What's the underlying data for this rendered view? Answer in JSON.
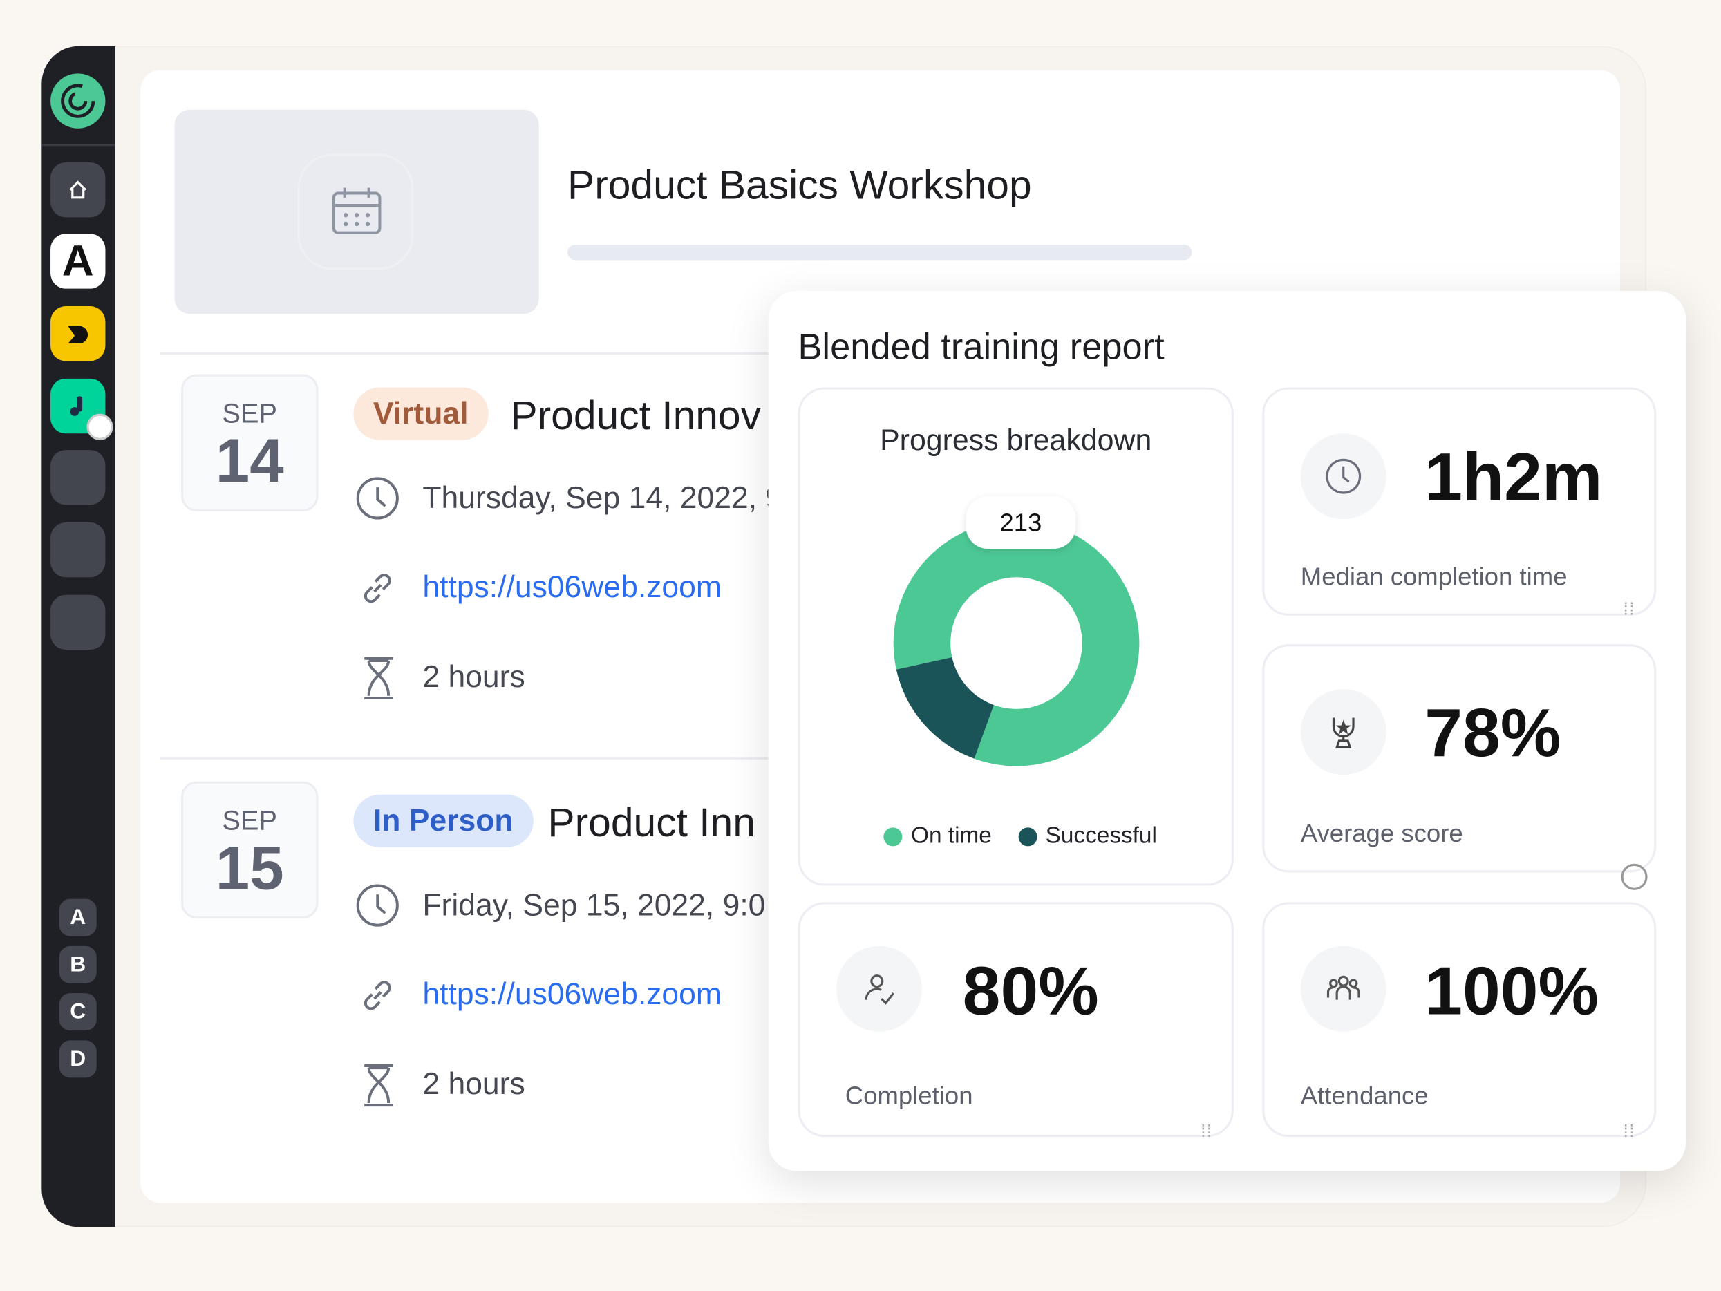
{
  "sidebar": {
    "letters": [
      "A",
      "B",
      "C",
      "D"
    ],
    "apps": [
      "A"
    ]
  },
  "workshop": {
    "title": "Product Basics Workshop",
    "progress": 0
  },
  "events": [
    {
      "month": "SEP",
      "day": "14",
      "type": "Virtual",
      "title": "Product Innov",
      "date": "Thursday, Sep 14, 2022, 9",
      "link": "https://us06web.zoom",
      "duration": "2 hours"
    },
    {
      "month": "SEP",
      "day": "15",
      "type": "In Person",
      "title": "Product Inn",
      "date": "Friday, Sep 15, 2022, 9:0",
      "link": "https://us06web.zoom",
      "duration": "2 hours"
    }
  ],
  "report": {
    "title": "Blended training report",
    "progress": {
      "title": "Progress breakdown",
      "total": "213",
      "legend": [
        "On time",
        "Successful"
      ]
    },
    "metrics": [
      {
        "value": "1h2m",
        "label": "Median completion time",
        "icon": "clock-icon"
      },
      {
        "value": "78%",
        "label": "Average score",
        "icon": "trophy-icon"
      },
      {
        "value": "80%",
        "label": "Completion",
        "icon": "user-check-icon"
      },
      {
        "value": "100%",
        "label": "Attendance",
        "icon": "group-icon"
      }
    ]
  },
  "chart_data": {
    "type": "pie",
    "donut": true,
    "categories": [
      "On time",
      "Successful"
    ],
    "values": [
      0.84,
      0.16
    ],
    "colors": [
      "#4cc894",
      "#1a5459"
    ],
    "label": "213",
    "legend": "bottom"
  },
  "colors": {
    "virtual_bg": "#fde8dc",
    "virtual_fg": "#a15b3b",
    "inperson_bg": "#dde7fb",
    "inperson_fg": "#2e5fc9",
    "accent": "#4cc894"
  }
}
